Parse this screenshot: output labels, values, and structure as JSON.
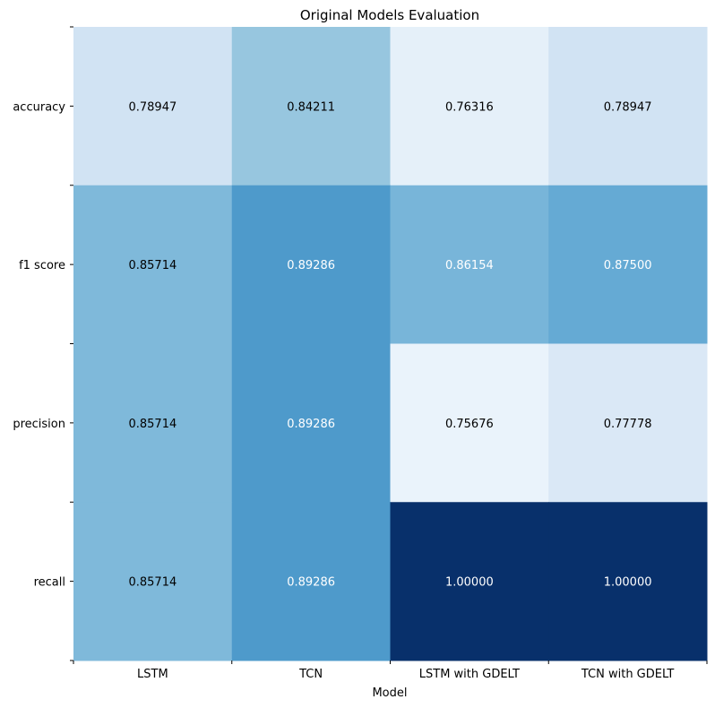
{
  "chart_data": {
    "type": "heatmap",
    "title": "Original Models Evaluation",
    "xlabel": "Model",
    "ylabel": "",
    "x_categories": [
      "LSTM",
      "TCN",
      "LSTM with GDELT",
      "TCN with GDELT"
    ],
    "y_categories": [
      "accuracy",
      "f1 score",
      "precision",
      "recall"
    ],
    "values": [
      [
        0.78947,
        0.84211,
        0.76316,
        0.78947
      ],
      [
        0.85714,
        0.89286,
        0.86154,
        0.875
      ],
      [
        0.85714,
        0.89286,
        0.75676,
        0.77778
      ],
      [
        0.85714,
        0.89286,
        1.0,
        1.0
      ]
    ],
    "cell_labels": [
      [
        "0.78947",
        "0.84211",
        "0.76316",
        "0.78947"
      ],
      [
        "0.85714",
        "0.89286",
        "0.86154",
        "0.87500"
      ],
      [
        "0.85714",
        "0.89286",
        "0.75676",
        "0.77778"
      ],
      [
        "0.85714",
        "0.89286",
        "1.00000",
        "1.00000"
      ]
    ],
    "colormap": "Blues",
    "color_range": [
      0.74,
      1.0
    ],
    "colors": {
      "light": "#f7fbff",
      "dark": "#08306b",
      "text_dark": "#000000",
      "text_light": "#ffffff"
    },
    "grid": false,
    "legend": "none"
  }
}
